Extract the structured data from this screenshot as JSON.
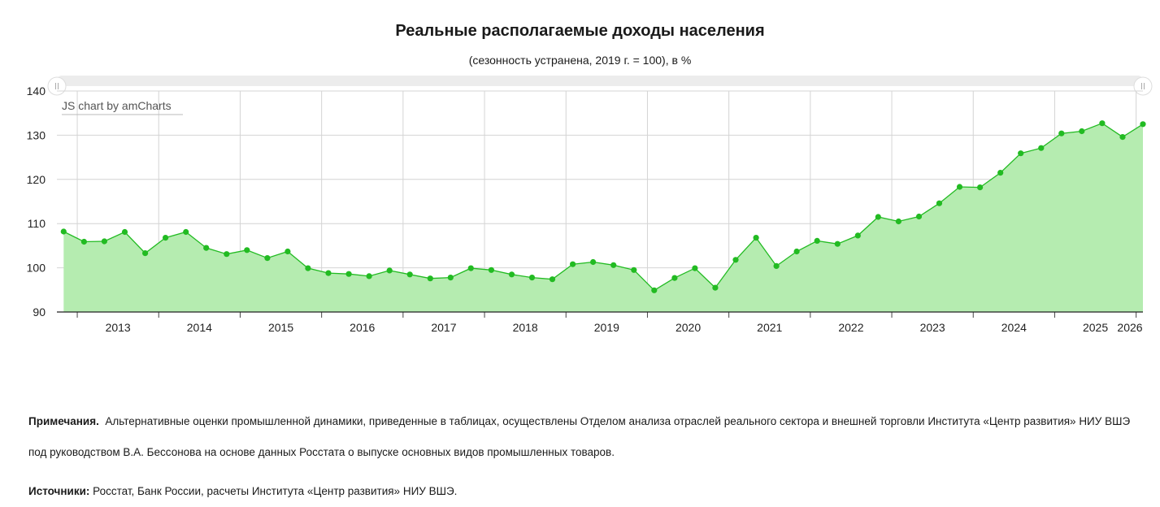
{
  "title": "Реальные располагаемые доходы населения",
  "subtitle": "(сезонность устранена, 2019 г. = 100), в %",
  "credit": "JS chart by amCharts",
  "colors": {
    "line": "#22bb22",
    "fill": "#b5ecb0",
    "grid": "#d4d4d4",
    "scrollbar": "#ececec"
  },
  "notes": {
    "label": "Примечания.",
    "text": "Альтернативные оценки промышленной динамики, приведенные в таблицах, осуществлены Отделом анализа отраслей реального сектора и внешней торговли Института «Центр развития» НИУ ВШЭ под руководством В.А. Бессонова на основе данных Росстата о выпуске основных видов промышленных товаров."
  },
  "sources": {
    "label": "Источники:",
    "text": "Росстат, Банк России, расчеты Института «Центр развития» НИУ ВШЭ."
  },
  "chart_data": {
    "type": "area",
    "title": "Реальные располагаемые доходы населения",
    "subtitle": "(сезонность устранена, 2019 г. = 100), в %",
    "ylim": [
      90,
      140
    ],
    "yticks": [
      90,
      100,
      110,
      120,
      130,
      140
    ],
    "x_tick_labels": [
      "2013",
      "2014",
      "2015",
      "2016",
      "2017",
      "2018",
      "2019",
      "2020",
      "2021",
      "2022",
      "2023",
      "2024",
      "2025",
      "2026"
    ],
    "x_start": "2012-10",
    "x_end": "2026-02",
    "grid": true,
    "legend": "none",
    "series": [
      {
        "x": [
          "2012-Q4",
          "2013-Q1",
          "2013-Q2",
          "2013-Q3",
          "2013-Q4",
          "2014-Q1",
          "2014-Q2",
          "2014-Q3",
          "2014-Q4",
          "2015-Q1",
          "2015-Q2",
          "2015-Q3",
          "2015-Q4",
          "2016-Q1",
          "2016-Q2",
          "2016-Q3",
          "2016-Q4",
          "2017-Q1",
          "2017-Q2",
          "2017-Q3",
          "2017-Q4",
          "2018-Q1",
          "2018-Q2",
          "2018-Q3",
          "2018-Q4",
          "2019-Q1",
          "2019-Q2",
          "2019-Q3",
          "2019-Q4",
          "2020-Q1",
          "2020-Q2",
          "2020-Q3",
          "2020-Q4",
          "2021-Q1",
          "2021-Q2",
          "2021-Q3",
          "2021-Q4",
          "2022-Q1",
          "2022-Q2",
          "2022-Q3",
          "2022-Q4",
          "2023-Q1",
          "2023-Q2",
          "2023-Q3",
          "2023-Q4",
          "2024-Q1",
          "2024-Q2",
          "2024-Q3",
          "2024-Q4",
          "2025-Q1",
          "2025-Q2",
          "2025-Q3",
          "2025-Q4",
          "2026-Q1"
        ],
        "values": [
          108.2,
          105.9,
          106.0,
          108.1,
          103.3,
          106.8,
          108.1,
          104.5,
          103.1,
          104.0,
          102.2,
          103.7,
          99.9,
          98.8,
          98.6,
          98.1,
          99.4,
          98.5,
          97.6,
          97.8,
          99.9,
          99.5,
          98.5,
          97.8,
          97.4,
          100.8,
          101.3,
          100.6,
          99.5,
          94.9,
          97.7,
          99.9,
          95.5,
          101.8,
          106.8,
          100.4,
          103.7,
          106.1,
          105.4,
          107.3,
          111.5,
          110.5,
          111.6,
          114.6,
          118.3,
          118.2,
          121.5,
          125.9,
          127.1,
          130.4,
          130.9,
          132.7,
          129.6,
          132.5
        ]
      }
    ]
  }
}
